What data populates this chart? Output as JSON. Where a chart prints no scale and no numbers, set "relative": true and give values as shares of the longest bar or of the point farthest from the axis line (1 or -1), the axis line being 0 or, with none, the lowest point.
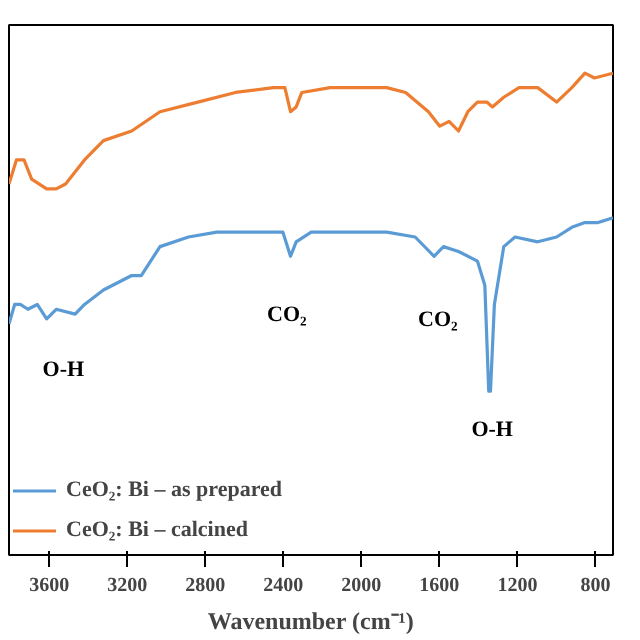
{
  "chart_data": {
    "type": "line",
    "relative": true,
    "xlabel": "Wavenumber (cm⁻¹)",
    "xlim": [
      3806,
      710
    ],
    "xticks": [
      3600,
      3200,
      2800,
      2400,
      2000,
      1600,
      1200,
      800
    ],
    "grid": false,
    "legend": "bottom left",
    "marker": "none",
    "line_style": "solid",
    "series": [
      {
        "name": "CeO₂: Bi – as prepared",
        "color": "#5b9bd5",
        "x": [
          3806,
          3777,
          3748,
          3709,
          3661,
          3613,
          3564,
          3467,
          3419,
          3322,
          3177,
          3128,
          3032,
          2886,
          2741,
          2548,
          2402,
          2363,
          2334,
          2257,
          1870,
          1724,
          1627,
          1579,
          1502,
          1405,
          1367,
          1347,
          1338,
          1318,
          1270,
          1212,
          1096,
          999,
          921,
          854,
          786,
          710
        ],
        "values": [
          0.48,
          0.52,
          0.52,
          0.51,
          0.52,
          0.49,
          0.51,
          0.5,
          0.52,
          0.55,
          0.58,
          0.58,
          0.64,
          0.66,
          0.67,
          0.67,
          0.67,
          0.62,
          0.65,
          0.67,
          0.67,
          0.66,
          0.62,
          0.64,
          0.63,
          0.61,
          0.56,
          0.34,
          0.34,
          0.52,
          0.64,
          0.66,
          0.65,
          0.66,
          0.68,
          0.69,
          0.69,
          0.7
        ]
      },
      {
        "name": "CeO₂: Bi – calcined",
        "color": "#ed7d31",
        "x": [
          3806,
          3768,
          3729,
          3690,
          3613,
          3564,
          3516,
          3419,
          3322,
          3177,
          3032,
          2838,
          2645,
          2450,
          2392,
          2363,
          2334,
          2305,
          2160,
          1870,
          1773,
          1656,
          1598,
          1550,
          1502,
          1454,
          1405,
          1357,
          1328,
          1270,
          1192,
          1096,
          999,
          921,
          854,
          805,
          710
        ],
        "values": [
          0.77,
          0.82,
          0.82,
          0.78,
          0.76,
          0.76,
          0.77,
          0.82,
          0.86,
          0.88,
          0.92,
          0.94,
          0.96,
          0.97,
          0.97,
          0.92,
          0.93,
          0.96,
          0.97,
          0.97,
          0.96,
          0.92,
          0.89,
          0.9,
          0.88,
          0.92,
          0.94,
          0.94,
          0.93,
          0.95,
          0.97,
          0.97,
          0.94,
          0.97,
          1.0,
          0.99,
          1.0
        ]
      }
    ],
    "annotations": [
      "CO₂",
      "CO₂",
      "O-H",
      "O-H"
    ]
  }
}
